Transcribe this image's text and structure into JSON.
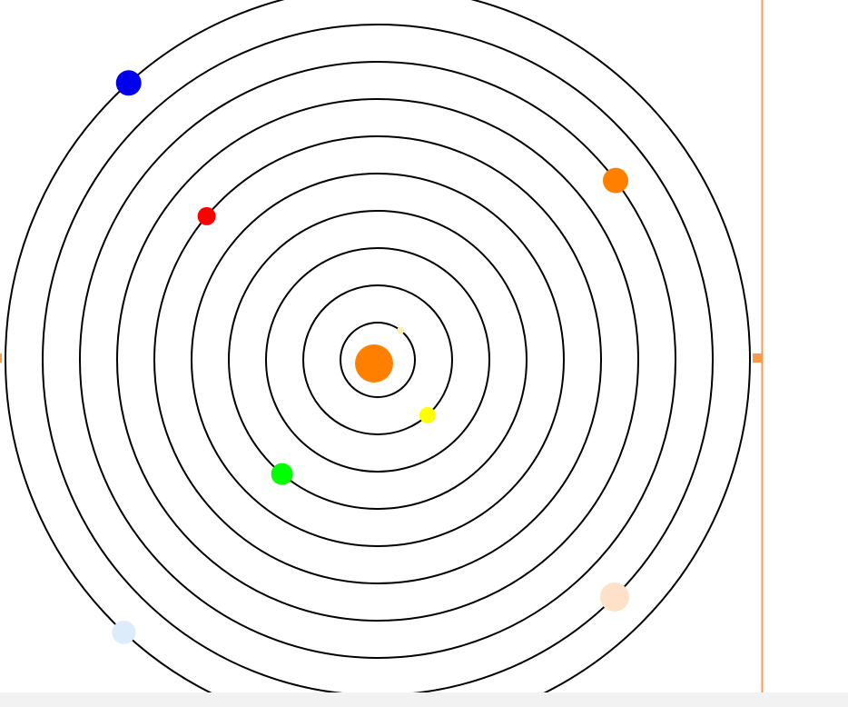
{
  "colors": {
    "background": "#ffffff",
    "orbit_stroke": "#000000",
    "frame_accent": "#f79a4e",
    "bottom_bar": "#f2f2f2"
  },
  "sun": {
    "name": "sun",
    "color": "#ff8000"
  },
  "orbits": {
    "count": 10
  },
  "bodies": [
    {
      "name": "pale-yellow-body",
      "color": "#f6f0b8",
      "orbit": 1,
      "angle_deg": 52
    },
    {
      "name": "yellow-body",
      "color": "#ffff00",
      "orbit": 2,
      "angle_deg": -48
    },
    {
      "name": "green-body",
      "color": "#00ff00",
      "orbit": 4,
      "angle_deg": -130
    },
    {
      "name": "red-body",
      "color": "#ff0000",
      "orbit": 6,
      "angle_deg": 140
    },
    {
      "name": "orange-body",
      "color": "#ff8000",
      "orbit": 8,
      "angle_deg": 37
    },
    {
      "name": "peach-body",
      "color": "#fde1c8",
      "orbit": 9,
      "angle_deg": -45
    },
    {
      "name": "blue-body",
      "color": "#0000ee",
      "orbit": 10,
      "angle_deg": 132
    },
    {
      "name": "light-blue-body",
      "color": "#dcecfb",
      "orbit": 10,
      "angle_deg": -133
    }
  ]
}
